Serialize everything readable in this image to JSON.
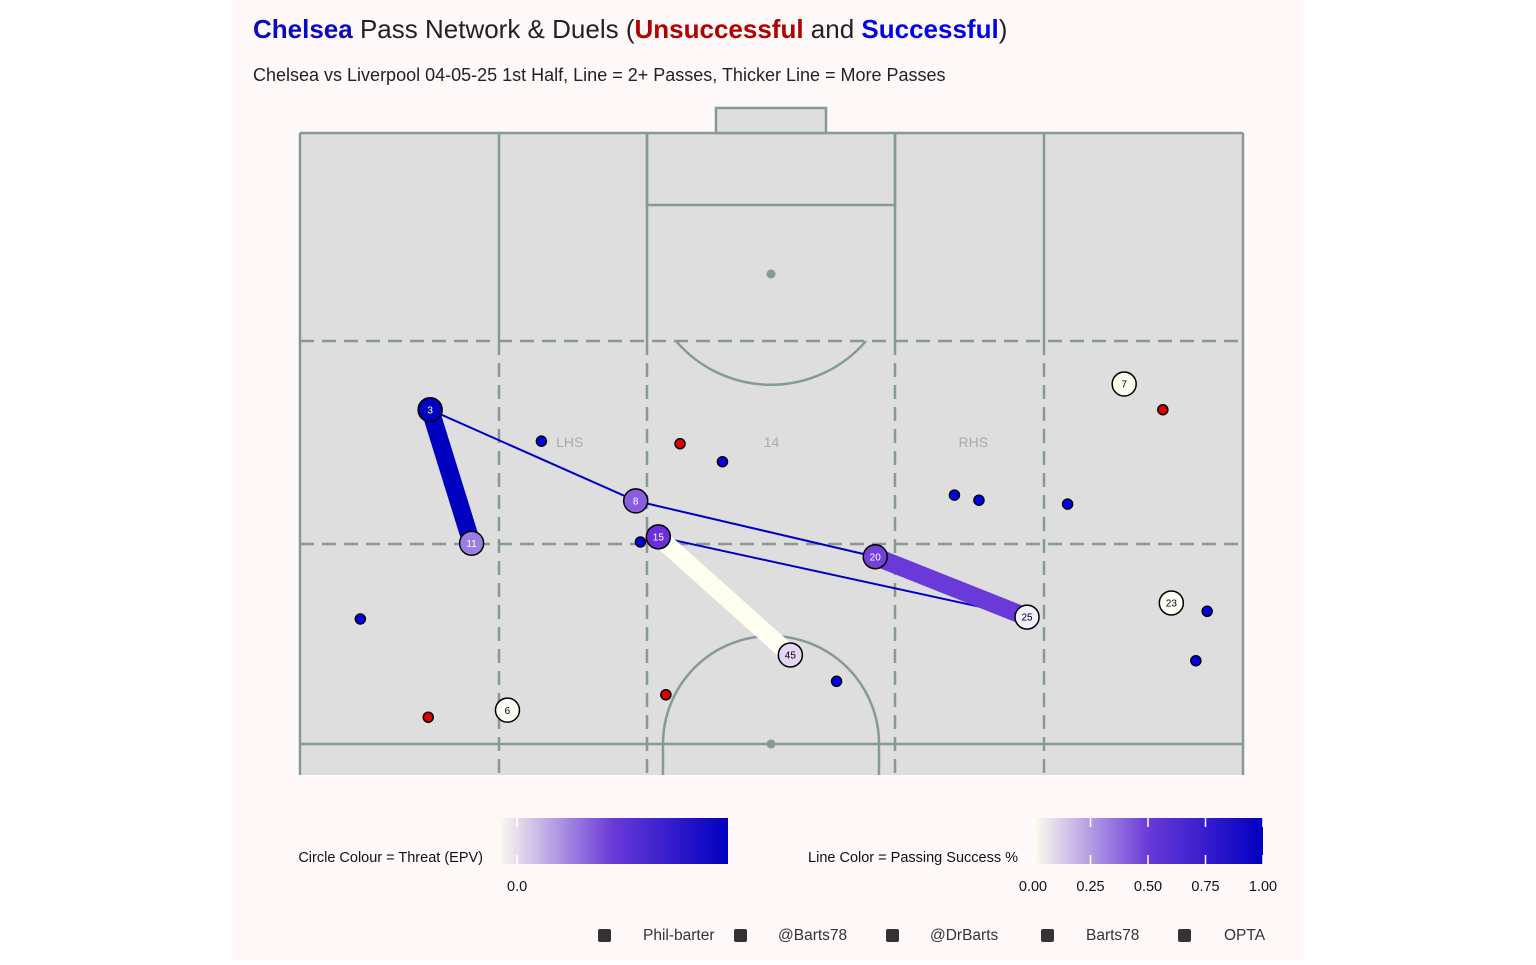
{
  "chart_data": {
    "type": "pass-network",
    "title_parts": [
      {
        "text": "Chelsea",
        "color": "#0a0ac0",
        "bold": true
      },
      {
        "text": " Pass Network & Duels (",
        "color": "#222222",
        "bold": false
      },
      {
        "text": "Unsuccessful",
        "color": "#b00000",
        "bold": true
      },
      {
        "text": " and ",
        "color": "#222222",
        "bold": false
      },
      {
        "text": "Successful",
        "color": "#0000ee",
        "bold": true
      },
      {
        "text": ")",
        "color": "#222222",
        "bold": false
      }
    ],
    "subtitle": "Chelsea vs Liverpool 04-05-25 1st Half, Line = 2+ Passes, Thicker Line = More Passes",
    "xlim": [
      0,
      100
    ],
    "ylim": [
      0,
      100
    ],
    "zone_labels": [
      {
        "text": "LHS",
        "x": 28.6,
        "y": 51.7
      },
      {
        "text": "14",
        "x": 50,
        "y": 51.7
      },
      {
        "text": "RHS",
        "x": 71.4,
        "y": 51.7
      }
    ],
    "nodes": [
      {
        "label": "3",
        "x": 13.8,
        "y": 56.9,
        "color": "#0000c0"
      },
      {
        "label": "11",
        "x": 18.2,
        "y": 36.1,
        "color": "#9b7fe0"
      },
      {
        "label": "8",
        "x": 35.6,
        "y": 42.7,
        "color": "#8a5ce0"
      },
      {
        "label": "15",
        "x": 38.0,
        "y": 37.1,
        "color": "#6a2fd8"
      },
      {
        "label": "20",
        "x": 61.0,
        "y": 34.0,
        "color": "#7540d8"
      },
      {
        "label": "25",
        "x": 77.1,
        "y": 24.6,
        "color": "#f0f0ff"
      },
      {
        "label": "45",
        "x": 52.0,
        "y": 18.7,
        "color": "#e6d6f5"
      },
      {
        "label": "7",
        "x": 87.4,
        "y": 60.9,
        "color": "#fffff0"
      },
      {
        "label": "23",
        "x": 92.4,
        "y": 26.8,
        "color": "#fffff8"
      },
      {
        "label": "6",
        "x": 22.0,
        "y": 10.1,
        "color": "#fdfdf5"
      }
    ],
    "edges": [
      {
        "from": "3",
        "to": "11",
        "passes": 6,
        "color": "#0000c0"
      },
      {
        "from": "3",
        "to": "8",
        "passes": 2,
        "color": "#0000c0"
      },
      {
        "from": "8",
        "to": "20",
        "passes": 2,
        "color": "#0000c0"
      },
      {
        "from": "15",
        "to": "25",
        "passes": 2,
        "color": "#0000c0"
      },
      {
        "from": "20",
        "to": "25",
        "passes": 6,
        "color": "#6a3ad8"
      },
      {
        "from": "15",
        "to": "45",
        "passes": 6,
        "color": "#fffff0"
      }
    ],
    "duels": [
      {
        "name": "Successful",
        "color": "#0000ee",
        "x": [
          25.6,
          44.8,
          69.4,
          72.0,
          81.4,
          36.1,
          6.4,
          96.2,
          95.0,
          56.9
        ],
        "y": [
          52.0,
          48.8,
          43.6,
          42.8,
          42.2,
          36.3,
          24.3,
          25.5,
          17.8,
          14.6
        ]
      },
      {
        "name": "Unsuccessful",
        "color": "#e00000",
        "x": [
          40.3,
          91.5,
          38.8,
          13.6
        ],
        "y": [
          51.6,
          56.9,
          12.5,
          9.0
        ]
      }
    ],
    "colorbars": [
      {
        "title": "Circle Colour = Threat (EPV)",
        "lim": [
          -0.01,
          0.105
        ],
        "ticks": [
          {
            "value": 0,
            "label": "0.0"
          }
        ],
        "colors": [
          "#fffff0",
          "#6a3ad8",
          "#0000c0"
        ]
      },
      {
        "title": "Line Color = Passing Success %",
        "lim": [
          0,
          1
        ],
        "ticks": [
          {
            "value": 0,
            "label": "0.00"
          },
          {
            "value": 0.25,
            "label": "0.25"
          },
          {
            "value": 0.5,
            "label": "0.50"
          },
          {
            "value": 0.75,
            "label": "0.75"
          },
          {
            "value": 1,
            "label": "1.00"
          }
        ],
        "colors": [
          "#fffff0",
          "#6a3ad8",
          "#0000c0"
        ]
      }
    ],
    "credits": [
      "Phil-barter",
      "@Barts78",
      "@DrBarts",
      "Barts78",
      "OPTA"
    ]
  }
}
